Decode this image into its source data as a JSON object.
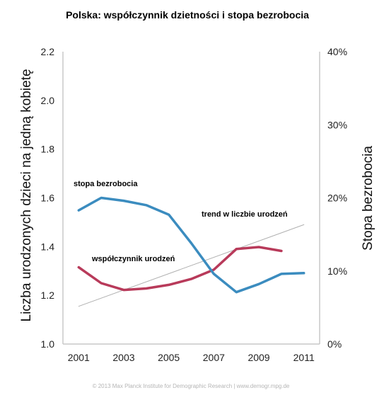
{
  "chart_data": {
    "type": "line",
    "title": "Polska: współczynnik dzietności i stopa bezrobocia",
    "ylabel_left": "Liczba urodzonych dzieci na jedną kobietę",
    "ylabel_right": "Stopa bezrobocia",
    "x_ticks": [
      "2001",
      "2003",
      "2005",
      "2007",
      "2009",
      "2011"
    ],
    "y_left_ticks": [
      "1.0",
      "1.2",
      "1.4",
      "1.6",
      "1.8",
      "2.0",
      "2.2"
    ],
    "y_right_ticks": [
      "0%",
      "10%",
      "20%",
      "30%",
      "40%"
    ],
    "ylim_left": [
      1.0,
      2.2
    ],
    "ylim_right": [
      0,
      40
    ],
    "xlim": [
      2000.3,
      2011.7
    ],
    "annotations": {
      "unemployment": "stopa bezrobocia",
      "fertility": "współczynnik urodzeń",
      "trend": "trend w liczbie urodzeń"
    },
    "series": [
      {
        "key": "unemployment",
        "axis": "right",
        "color": "#3b8cbf",
        "x": [
          2001,
          2002,
          2003,
          2004,
          2005,
          2006,
          2007,
          2008,
          2009,
          2010,
          2011
        ],
        "y": [
          18.3,
          20.0,
          19.6,
          19.0,
          17.7,
          13.8,
          9.6,
          7.1,
          8.2,
          9.6,
          9.7
        ]
      },
      {
        "key": "fertility",
        "axis": "left",
        "color": "#b83a5a",
        "x": [
          2001,
          2002,
          2003,
          2004,
          2005,
          2006,
          2007,
          2008,
          2009,
          2010
        ],
        "y": [
          1.315,
          1.25,
          1.222,
          1.228,
          1.243,
          1.267,
          1.305,
          1.39,
          1.398,
          1.382
        ]
      },
      {
        "key": "trend",
        "axis": "left",
        "color": "#b0b0b0",
        "x": [
          2001,
          2011
        ],
        "y": [
          1.155,
          1.49
        ]
      }
    ]
  },
  "footer": "© 2013 Max Planck Institute for Demographic Research | www.demogr.mpg.de"
}
